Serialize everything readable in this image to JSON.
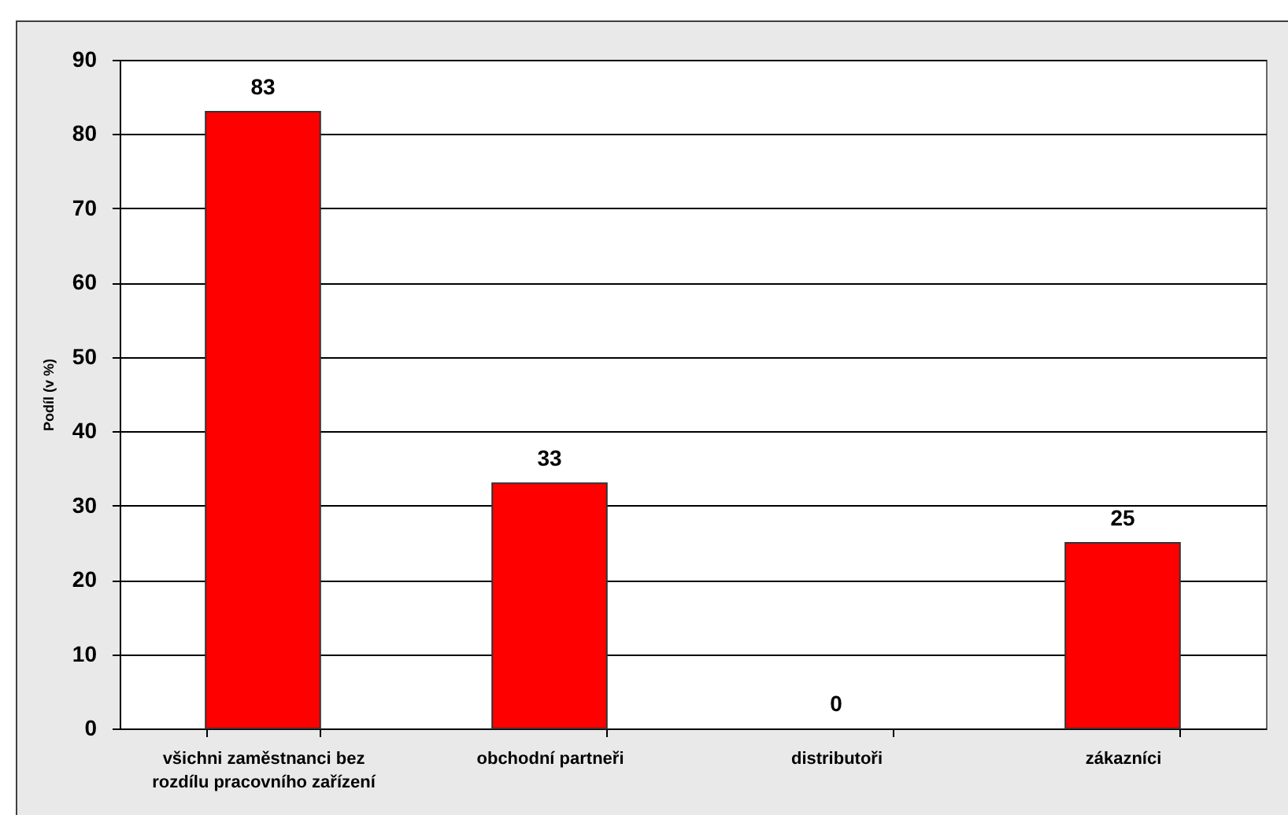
{
  "chart_data": {
    "type": "bar",
    "ylabel": "Podíl (v %)",
    "categories": [
      "všichni zaměstnanci bez rozdílu pracovního zařízení",
      "obchodní partneři",
      "distributoři",
      "zákazníci"
    ],
    "values": [
      83,
      33,
      0,
      25
    ],
    "color": "#ff0000",
    "ylim": [
      0,
      90
    ],
    "yticks": [
      0,
      10,
      20,
      30,
      40,
      50,
      60,
      70,
      80,
      90
    ],
    "grid": "y",
    "data_labels": true
  }
}
